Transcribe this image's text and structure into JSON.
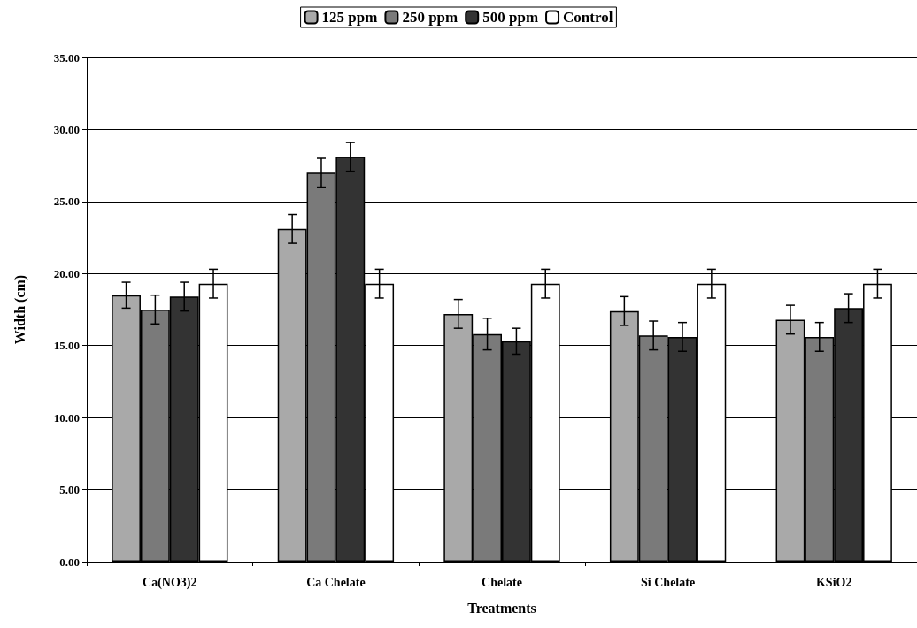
{
  "chart_data": {
    "type": "bar",
    "xlabel": "Treatments",
    "ylabel": "Width (cm)",
    "categories": [
      "Ca(NO3)2",
      "Ca Chelate",
      "Chelate",
      "Si Chelate",
      "KSiO2"
    ],
    "series": [
      {
        "name": "125 ppm",
        "color": "#a9a9a9",
        "values": [
          18.5,
          23.1,
          17.2,
          17.4,
          16.8
        ],
        "errors": [
          0.9,
          1.0,
          1.0,
          1.0,
          1.0
        ]
      },
      {
        "name": "250 ppm",
        "color": "#7a7a7a",
        "values": [
          17.5,
          27.0,
          15.8,
          15.7,
          15.6
        ],
        "errors": [
          1.0,
          1.0,
          1.1,
          1.0,
          1.0
        ]
      },
      {
        "name": "500 ppm",
        "color": "#333333",
        "values": [
          18.4,
          28.1,
          15.3,
          15.6,
          17.6
        ],
        "errors": [
          1.0,
          1.0,
          0.9,
          1.0,
          1.0
        ]
      },
      {
        "name": "Control",
        "color": "#ffffff",
        "values": [
          19.3,
          19.3,
          19.3,
          19.3,
          19.3
        ],
        "errors": [
          1.0,
          1.0,
          1.0,
          1.0,
          1.0
        ]
      }
    ],
    "ylim": [
      0,
      35
    ],
    "yticks": [
      {
        "value": 0,
        "label": "0.00"
      },
      {
        "value": 5,
        "label": "5.00"
      },
      {
        "value": 10,
        "label": "10.00"
      },
      {
        "value": 15,
        "label": "15.00"
      },
      {
        "value": 20,
        "label": "20.00"
      },
      {
        "value": 25,
        "label": "25.00"
      },
      {
        "value": 30,
        "label": "30.00"
      },
      {
        "value": 35,
        "label": "35.00"
      }
    ],
    "grid": "y",
    "legend": "top"
  }
}
